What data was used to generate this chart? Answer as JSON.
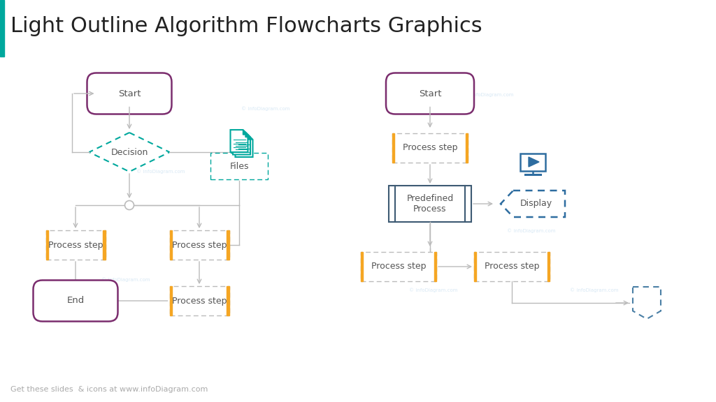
{
  "title": "Light Outline Algorithm Flowcharts Graphics",
  "title_fontsize": 22,
  "title_color": "#222222",
  "bg_color": "#ffffff",
  "footer_text": "Get these slides  & icons at www.infoDiagram.com",
  "footer_color": "#aaaaaa",
  "purple": "#7b2d6e",
  "teal": "#00a89d",
  "blue": "#2e6da0",
  "orange": "#f5a623",
  "dark_gray": "#555555",
  "light_gray": "#bbbbbb",
  "connector_gray": "#aaaaaa",
  "watermark_color": "#c8dff0",
  "watermarks": [
    [
      2.3,
      3.3,
      "© infoDiagram.com"
    ],
    [
      3.8,
      4.2,
      "© infoDiagram.com"
    ],
    [
      1.8,
      1.75,
      "© infoDiagram.com"
    ],
    [
      7.0,
      4.4,
      "© infoDiagram.com"
    ],
    [
      7.6,
      2.45,
      "© infoDiagram.com"
    ],
    [
      6.2,
      1.6,
      "© infoDiagram.com"
    ],
    [
      8.5,
      1.6,
      "© infoDiagram.com"
    ]
  ]
}
